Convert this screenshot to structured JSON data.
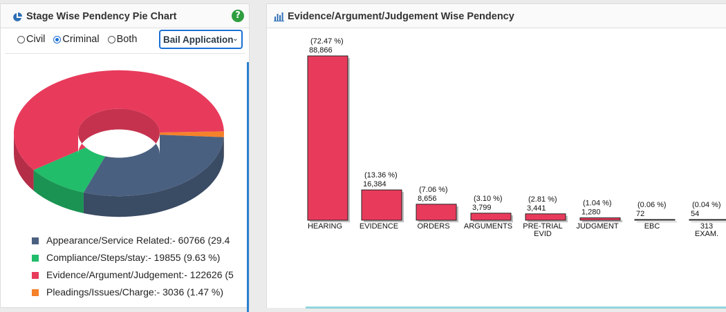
{
  "left_panel": {
    "title": "Stage Wise Pendency Pie Chart",
    "help_glyph": "?",
    "radios": [
      {
        "label": "Civil",
        "checked": false
      },
      {
        "label": "Criminal",
        "checked": true
      },
      {
        "label": "Both",
        "checked": false
      }
    ],
    "select_value": "Bail Application",
    "legend": [
      {
        "label": "Appearance/Service Related:- 60766 (29.4",
        "color": "#4a6080"
      },
      {
        "label": "Compliance/Steps/stay:- 19855 (9.63 %)",
        "color": "#21bd6a"
      },
      {
        "label": "Evidence/Argument/Judgement:- 122626 (5",
        "color": "#e83b5c"
      },
      {
        "label": "Pleadings/Issues/Charge:- 3036 (1.47 %)",
        "color": "#f5812a"
      }
    ]
  },
  "right_panel": {
    "title": "Evidence/Argument/Judgement Wise Pendency"
  },
  "chart_data": [
    {
      "type": "pie",
      "title": "Stage Wise Pendency Pie Chart",
      "slices": [
        {
          "label": "Appearance/Service Related",
          "value": 60766,
          "color": "#4a6080"
        },
        {
          "label": "Compliance/Steps/stay",
          "value": 19855,
          "color": "#21bd6a"
        },
        {
          "label": "Evidence/Argument/Judgement",
          "value": 122626,
          "color": "#e83b5c"
        },
        {
          "label": "Pleadings/Issues/Charge",
          "value": 3036,
          "color": "#f5812a"
        }
      ]
    },
    {
      "type": "bar",
      "title": "Evidence/Argument/Judgement Wise Pendency",
      "bar_color": "#e83b5c",
      "bars": [
        {
          "category": [
            "HEARING"
          ],
          "value": 88866,
          "value_label": "88,866",
          "percent_label": "(72.47 %)"
        },
        {
          "category": [
            "EVIDENCE"
          ],
          "value": 16384,
          "value_label": "16,384",
          "percent_label": "(13.36 %)"
        },
        {
          "category": [
            "ORDERS"
          ],
          "value": 8656,
          "value_label": "8,656",
          "percent_label": "(7.06 %)"
        },
        {
          "category": [
            "ARGUMENTS"
          ],
          "value": 3799,
          "value_label": "3,799",
          "percent_label": "(3.10 %)"
        },
        {
          "category": [
            "PRE-TRIAL",
            "EVID"
          ],
          "value": 3441,
          "value_label": "3,441",
          "percent_label": "(2.81 %)"
        },
        {
          "category": [
            "JUDGMENT"
          ],
          "value": 1280,
          "value_label": "1,280",
          "percent_label": "(1.04 %)"
        },
        {
          "category": [
            "EBC"
          ],
          "value": 72,
          "value_label": "72",
          "percent_label": "(0.06 %)"
        },
        {
          "category": [
            "313",
            "EXAM."
          ],
          "value": 54,
          "value_label": "54",
          "percent_label": "(0.04 %)"
        }
      ]
    }
  ]
}
